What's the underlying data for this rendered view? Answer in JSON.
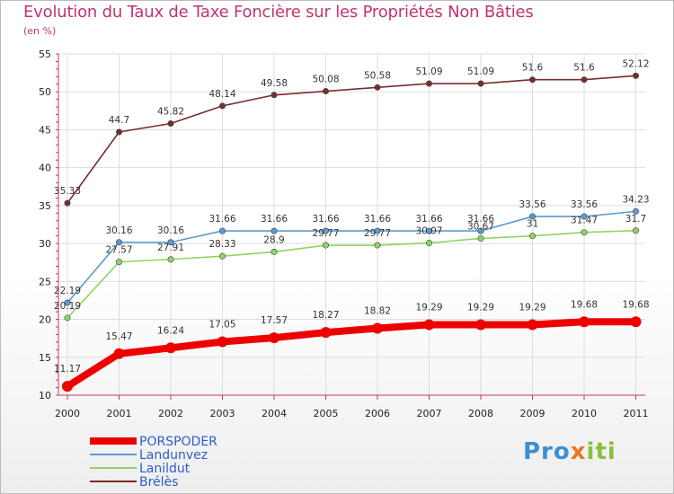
{
  "chart_data": {
    "type": "line",
    "title": "Evolution du Taux de Taxe Foncière sur les Propriétés Non Bâties",
    "ylabel": "(en %)",
    "xlabel": "",
    "categories": [
      "2000",
      "2001",
      "2002",
      "2003",
      "2004",
      "2005",
      "2006",
      "2007",
      "2008",
      "2009",
      "2010",
      "2011"
    ],
    "ylim": [
      10,
      55
    ],
    "yticks": [
      "10",
      "15",
      "20",
      "25",
      "30",
      "35",
      "40",
      "45",
      "50",
      "55"
    ],
    "legend_position": "bottom-left",
    "series": [
      {
        "name": "PORSPODER",
        "color": "#ee0000",
        "values": [
          11.17,
          15.47,
          16.24,
          17.05,
          17.57,
          18.27,
          18.82,
          19.29,
          19.29,
          19.29,
          19.68,
          19.68
        ],
        "labels": [
          "11.17",
          "15.47",
          "16.24",
          "17.05",
          "17.57",
          "18.27",
          "18.82",
          "19.29",
          "19.29",
          "19.29",
          "19.68",
          "19.68"
        ]
      },
      {
        "name": "Landunvez",
        "color": "#5b9bd0",
        "values": [
          22.19,
          30.16,
          30.16,
          31.66,
          31.66,
          31.66,
          31.66,
          31.66,
          31.66,
          33.56,
          33.56,
          34.23
        ],
        "labels": [
          "22.19",
          "30.16",
          "30.16",
          "31.66",
          "31.66",
          "31.66",
          "31.66",
          "31.66",
          "31.66",
          "33.56",
          "33.56",
          "34.23"
        ]
      },
      {
        "name": "Lanildut",
        "color": "#8ed561",
        "values": [
          20.19,
          27.57,
          27.91,
          28.33,
          28.9,
          29.77,
          29.77,
          30.07,
          30.67,
          31,
          31.47,
          31.7
        ],
        "labels": [
          "20.19",
          "27.57",
          "27.91",
          "28.33",
          "28.9",
          "29.77",
          "29.77",
          "30.07",
          "30.67",
          "31",
          "31.47",
          "31.7"
        ]
      },
      {
        "name": "Brélès",
        "color": "#7a2c2c",
        "values": [
          35.33,
          44.7,
          45.82,
          48.14,
          49.58,
          50.08,
          50.58,
          51.09,
          51.09,
          51.6,
          51.6,
          52.12
        ],
        "labels": [
          "35.33",
          "44.7",
          "45.82",
          "48.14",
          "49.58",
          "50.08",
          "50.58",
          "51.09",
          "51.09",
          "51.6",
          "51.6",
          "52.12"
        ]
      }
    ]
  },
  "logo": {
    "part1": "Pro",
    "part2": "x",
    "part3": "iti"
  }
}
